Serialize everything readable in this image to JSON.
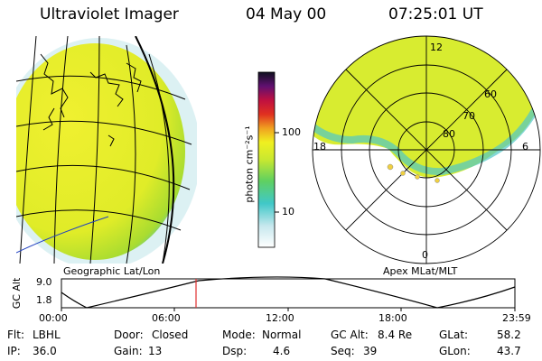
{
  "header": {
    "instrument": "Ultraviolet Imager",
    "date": "04 May 00",
    "time": "07:25:01 UT"
  },
  "left_panel": {
    "caption": "Geographic Lat/Lon"
  },
  "right_panel": {
    "caption": "Apex MLat/MLT",
    "lat_labels": [
      "60",
      "70",
      "80"
    ],
    "mlt_labels": {
      "top": "12",
      "left": "18",
      "right": "6",
      "bottom": "0"
    }
  },
  "colorbar": {
    "unit_label": "photon cm⁻²s⁻¹",
    "ticks": [
      "100",
      "10"
    ],
    "scale": "log"
  },
  "orbit": {
    "axis_label": "GC Alt",
    "y_ticks": [
      "9.0",
      "1.8"
    ],
    "x_ticks": [
      "00:00",
      "06:00",
      "12:00",
      "18:00",
      "23:59"
    ],
    "marker_time": "07:25",
    "marker_color": "#e03030"
  },
  "status": {
    "filter_label": "Flt:",
    "filter": "LBHL",
    "ip_label": "IP:",
    "ip": "36.0",
    "door_label": "Door:",
    "door": "Closed",
    "gain_label": "Gain:",
    "gain": "13",
    "mode_label": "Mode:",
    "mode": "Normal",
    "dsp_label": "Dsp:",
    "dsp": "4.6",
    "gcalt_label": "GC Alt:",
    "gcalt": "8.4 Re",
    "seq_label": "Seq:",
    "seq": "39",
    "glat_label": "GLat:",
    "glat": "58.2",
    "glon_label": "GLon:",
    "glon": "43.7"
  }
}
